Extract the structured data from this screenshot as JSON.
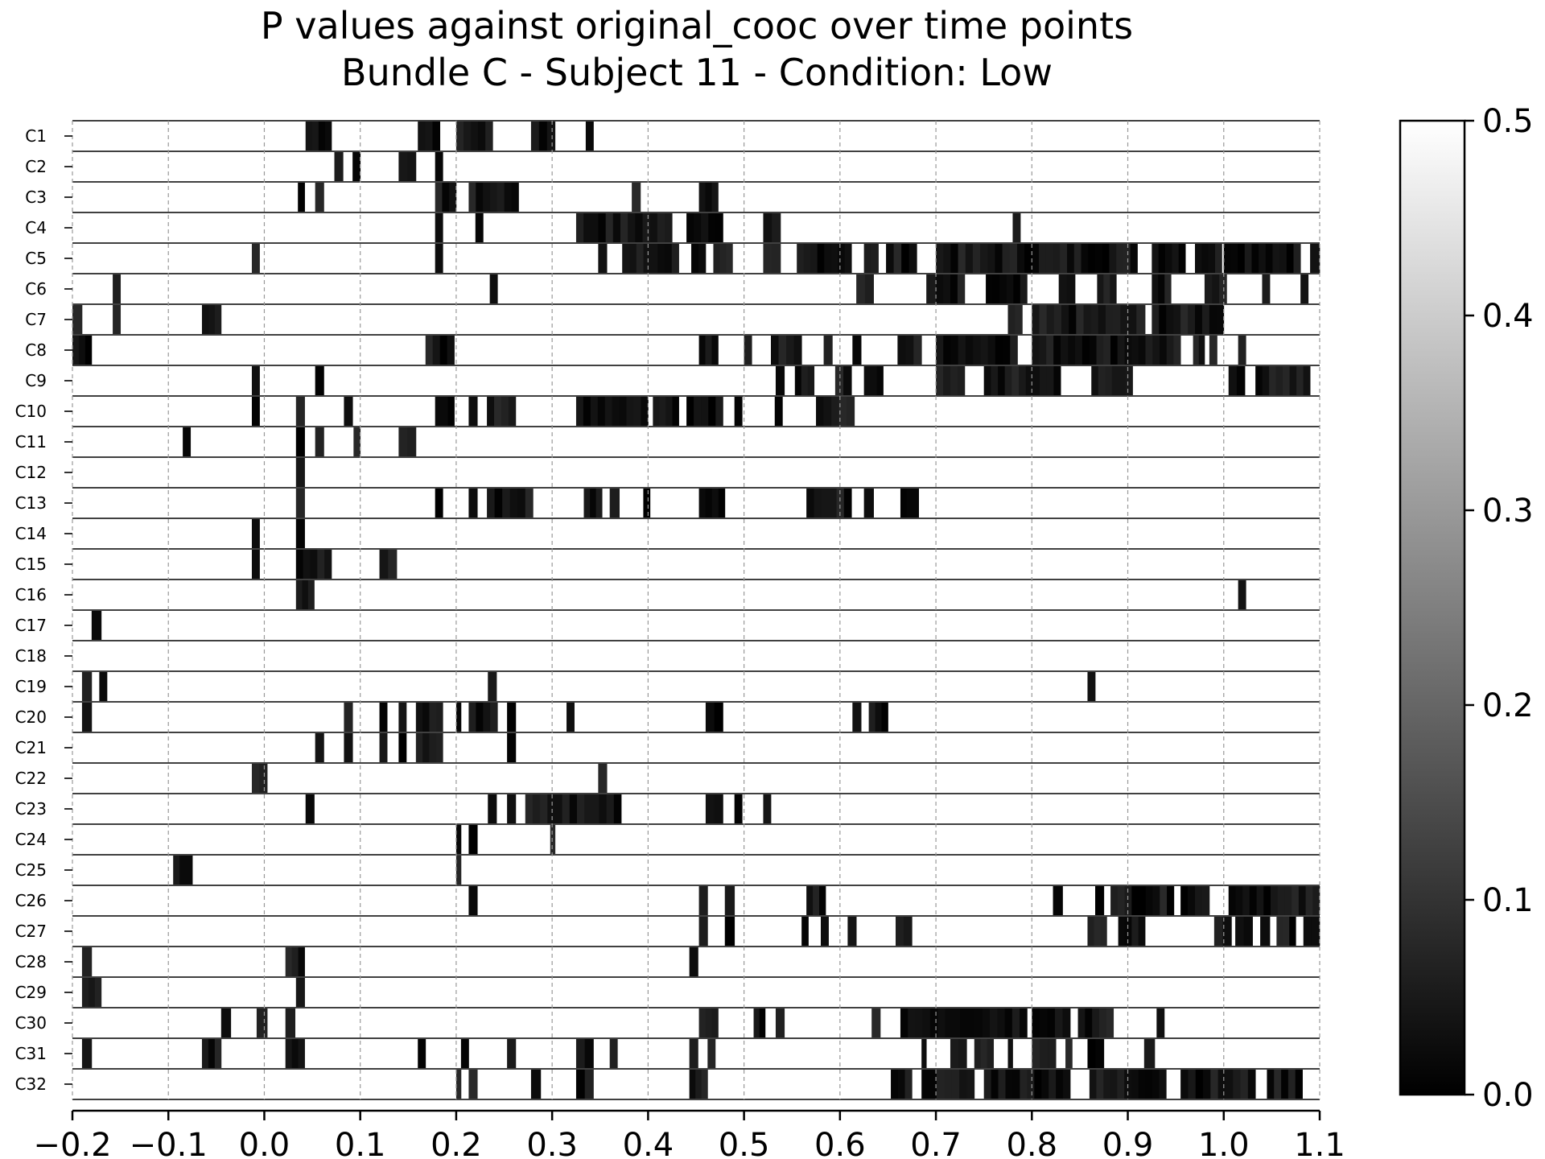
{
  "chart_data": {
    "type": "heatmap",
    "title": "P values against original_cooc over time points",
    "subtitle": "Bundle C - Subject 11 - Condition: Low",
    "xlim": [
      -0.2,
      1.1
    ],
    "xticks": [
      "−0.2",
      "−0.1",
      "0.0",
      "0.1",
      "0.2",
      "0.3",
      "0.4",
      "0.5",
      "0.6",
      "0.7",
      "0.8",
      "0.9",
      "1.0",
      "1.1"
    ],
    "xtick_values": [
      -0.2,
      -0.1,
      0.0,
      0.1,
      0.2,
      0.3,
      0.4,
      0.5,
      0.6,
      0.7,
      0.8,
      0.9,
      1.0,
      1.1
    ],
    "grid": "vertical dashed at x ticks",
    "colormap": "gray",
    "colorbar": {
      "vmin": 0.0,
      "vmax": 0.5,
      "ticks": [
        "0.0",
        "0.1",
        "0.2",
        "0.3",
        "0.4",
        "0.5"
      ],
      "placement": "right"
    },
    "note_value": "significant time points shown dark (p near 0), others white (p >= 0.5)",
    "rows": [
      {
        "label": "C1",
        "intervals": [
          [
            0.043,
            0.07
          ],
          [
            0.16,
            0.183
          ],
          [
            0.2,
            0.238
          ],
          [
            0.278,
            0.303
          ],
          [
            0.335,
            0.343
          ]
        ]
      },
      {
        "label": "C2",
        "intervals": [
          [
            0.073,
            0.082
          ],
          [
            0.092,
            0.1
          ],
          [
            0.14,
            0.158
          ],
          [
            0.178,
            0.186
          ]
        ]
      },
      {
        "label": "C3",
        "intervals": [
          [
            0.035,
            0.042
          ],
          [
            0.053,
            0.062
          ],
          [
            0.178,
            0.2
          ],
          [
            0.213,
            0.265
          ],
          [
            0.383,
            0.392
          ],
          [
            0.453,
            0.473
          ]
        ]
      },
      {
        "label": "C4",
        "intervals": [
          [
            0.178,
            0.186
          ],
          [
            0.22,
            0.228
          ],
          [
            0.325,
            0.425
          ],
          [
            0.44,
            0.478
          ],
          [
            0.52,
            0.538
          ],
          [
            0.78,
            0.788
          ]
        ]
      },
      {
        "label": "C5",
        "intervals": [
          [
            -0.013,
            -0.005
          ],
          [
            0.178,
            0.186
          ],
          [
            0.348,
            0.357
          ],
          [
            0.373,
            0.432
          ],
          [
            0.445,
            0.46
          ],
          [
            0.468,
            0.488
          ],
          [
            0.52,
            0.538
          ],
          [
            0.555,
            0.612
          ],
          [
            0.625,
            0.64
          ],
          [
            0.648,
            0.68
          ],
          [
            0.7,
            0.8
          ],
          [
            0.8,
            0.91
          ],
          [
            0.925,
            0.96
          ],
          [
            0.97,
            0.998
          ],
          [
            1.0,
            1.08
          ],
          [
            1.09,
            1.1
          ]
        ]
      },
      {
        "label": "C6",
        "intervals": [
          [
            -0.158,
            -0.15
          ],
          [
            0.235,
            0.243
          ],
          [
            0.617,
            0.635
          ],
          [
            0.69,
            0.7
          ],
          [
            0.7,
            0.73
          ],
          [
            0.752,
            0.795
          ],
          [
            0.828,
            0.845
          ],
          [
            0.868,
            0.888
          ],
          [
            0.925,
            0.945
          ],
          [
            0.98,
            1.003
          ],
          [
            1.04,
            1.048
          ],
          [
            1.08,
            1.088
          ]
        ]
      },
      {
        "label": "C7",
        "intervals": [
          [
            -0.2,
            -0.19
          ],
          [
            -0.158,
            -0.15
          ],
          [
            -0.065,
            -0.045
          ],
          [
            0.775,
            0.79
          ],
          [
            0.8,
            0.9
          ],
          [
            0.9,
            0.918
          ],
          [
            0.925,
            1.0
          ]
        ]
      },
      {
        "label": "C8",
        "intervals": [
          [
            -0.2,
            -0.18
          ],
          [
            0.168,
            0.198
          ],
          [
            0.453,
            0.473
          ],
          [
            0.5,
            0.508
          ],
          [
            0.528,
            0.56
          ],
          [
            0.583,
            0.592
          ],
          [
            0.613,
            0.622
          ],
          [
            0.66,
            0.685
          ],
          [
            0.7,
            0.785
          ],
          [
            0.8,
            0.86
          ],
          [
            0.86,
            0.955
          ],
          [
            0.968,
            0.98
          ],
          [
            0.985,
            0.993
          ],
          [
            1.015,
            1.023
          ]
        ]
      },
      {
        "label": "C9",
        "intervals": [
          [
            -0.013,
            -0.005
          ],
          [
            0.053,
            0.062
          ],
          [
            0.533,
            0.542
          ],
          [
            0.553,
            0.573
          ],
          [
            0.595,
            0.612
          ],
          [
            0.625,
            0.645
          ],
          [
            0.7,
            0.73
          ],
          [
            0.75,
            0.83
          ],
          [
            0.862,
            0.905
          ],
          [
            1.005,
            1.022
          ],
          [
            1.033,
            1.09
          ]
        ]
      },
      {
        "label": "C10",
        "intervals": [
          [
            -0.013,
            -0.005
          ],
          [
            0.033,
            0.042
          ],
          [
            0.083,
            0.092
          ],
          [
            0.178,
            0.198
          ],
          [
            0.213,
            0.222
          ],
          [
            0.232,
            0.262
          ],
          [
            0.325,
            0.4
          ],
          [
            0.405,
            0.432
          ],
          [
            0.44,
            0.478
          ],
          [
            0.49,
            0.498
          ],
          [
            0.532,
            0.54
          ],
          [
            0.575,
            0.615
          ]
        ]
      },
      {
        "label": "C11",
        "intervals": [
          [
            -0.085,
            -0.077
          ],
          [
            0.033,
            0.042
          ],
          [
            0.053,
            0.062
          ],
          [
            0.093,
            0.1
          ],
          [
            0.14,
            0.158
          ]
        ]
      },
      {
        "label": "C12",
        "intervals": [
          [
            0.033,
            0.042
          ]
        ]
      },
      {
        "label": "C13",
        "intervals": [
          [
            0.033,
            0.042
          ],
          [
            0.178,
            0.186
          ],
          [
            0.213,
            0.222
          ],
          [
            0.232,
            0.28
          ],
          [
            0.333,
            0.352
          ],
          [
            0.36,
            0.37
          ],
          [
            0.395,
            0.402
          ],
          [
            0.453,
            0.48
          ],
          [
            0.565,
            0.612
          ],
          [
            0.625,
            0.635
          ],
          [
            0.663,
            0.682
          ]
        ]
      },
      {
        "label": "C14",
        "intervals": [
          [
            -0.013,
            -0.005
          ],
          [
            0.033,
            0.042
          ]
        ]
      },
      {
        "label": "C15",
        "intervals": [
          [
            -0.013,
            -0.005
          ],
          [
            0.033,
            0.07
          ],
          [
            0.12,
            0.138
          ]
        ]
      },
      {
        "label": "C16",
        "intervals": [
          [
            0.033,
            0.052
          ],
          [
            1.015,
            1.023
          ]
        ]
      },
      {
        "label": "C17",
        "intervals": [
          [
            -0.18,
            -0.17
          ]
        ]
      },
      {
        "label": "C18",
        "intervals": []
      },
      {
        "label": "C19",
        "intervals": [
          [
            -0.19,
            -0.18
          ],
          [
            -0.172,
            -0.164
          ],
          [
            0.233,
            0.242
          ],
          [
            0.858,
            0.866
          ]
        ]
      },
      {
        "label": "C20",
        "intervals": [
          [
            -0.19,
            -0.18
          ],
          [
            0.083,
            0.092
          ],
          [
            0.12,
            0.128
          ],
          [
            0.14,
            0.148
          ],
          [
            0.158,
            0.186
          ],
          [
            0.2,
            0.205
          ],
          [
            0.213,
            0.243
          ],
          [
            0.253,
            0.262
          ],
          [
            0.315,
            0.323
          ],
          [
            0.46,
            0.478
          ],
          [
            0.613,
            0.622
          ],
          [
            0.63,
            0.65
          ]
        ]
      },
      {
        "label": "C21",
        "intervals": [
          [
            0.053,
            0.062
          ],
          [
            0.083,
            0.092
          ],
          [
            0.12,
            0.128
          ],
          [
            0.14,
            0.148
          ],
          [
            0.158,
            0.186
          ],
          [
            0.253,
            0.262
          ]
        ]
      },
      {
        "label": "C22",
        "intervals": [
          [
            -0.013,
            0.003
          ],
          [
            0.348,
            0.357
          ]
        ]
      },
      {
        "label": "C23",
        "intervals": [
          [
            0.043,
            0.052
          ],
          [
            0.233,
            0.242
          ],
          [
            0.253,
            0.262
          ],
          [
            0.272,
            0.372
          ],
          [
            0.46,
            0.478
          ],
          [
            0.49,
            0.498
          ],
          [
            0.52,
            0.528
          ]
        ]
      },
      {
        "label": "C24",
        "intervals": [
          [
            0.2,
            0.205
          ],
          [
            0.213,
            0.222
          ],
          [
            0.298,
            0.303
          ]
        ]
      },
      {
        "label": "C25",
        "intervals": [
          [
            -0.095,
            -0.075
          ],
          [
            0.2,
            0.205
          ]
        ]
      },
      {
        "label": "C26",
        "intervals": [
          [
            0.213,
            0.222
          ],
          [
            0.453,
            0.462
          ],
          [
            0.48,
            0.49
          ],
          [
            0.565,
            0.585
          ],
          [
            0.822,
            0.832
          ],
          [
            0.866,
            0.875
          ],
          [
            0.882,
            0.948
          ],
          [
            0.955,
            0.985
          ],
          [
            1.005,
            1.1
          ]
        ]
      },
      {
        "label": "C27",
        "intervals": [
          [
            0.453,
            0.462
          ],
          [
            0.48,
            0.49
          ],
          [
            0.56,
            0.567
          ],
          [
            0.58,
            0.588
          ],
          [
            0.608,
            0.617
          ],
          [
            0.658,
            0.675
          ],
          [
            0.858,
            0.878
          ],
          [
            0.89,
            0.918
          ],
          [
            0.99,
            1.008
          ],
          [
            1.012,
            1.03
          ],
          [
            1.038,
            1.048
          ],
          [
            1.055,
            1.075
          ],
          [
            1.083,
            1.1
          ]
        ]
      },
      {
        "label": "C28",
        "intervals": [
          [
            -0.19,
            -0.18
          ],
          [
            0.022,
            0.042
          ],
          [
            0.443,
            0.452
          ]
        ]
      },
      {
        "label": "C29",
        "intervals": [
          [
            -0.19,
            -0.17
          ],
          [
            0.033,
            0.042
          ]
        ]
      },
      {
        "label": "C30",
        "intervals": [
          [
            -0.045,
            -0.035
          ],
          [
            -0.008,
            0.003
          ],
          [
            0.022,
            0.032
          ],
          [
            0.453,
            0.473
          ],
          [
            0.51,
            0.522
          ],
          [
            0.533,
            0.542
          ],
          [
            0.633,
            0.642
          ],
          [
            0.663,
            0.795
          ],
          [
            0.8,
            0.84
          ],
          [
            0.848,
            0.885
          ],
          [
            0.93,
            0.938
          ]
        ]
      },
      {
        "label": "C31",
        "intervals": [
          [
            -0.19,
            -0.18
          ],
          [
            -0.065,
            -0.045
          ],
          [
            0.022,
            0.042
          ],
          [
            0.16,
            0.168
          ],
          [
            0.205,
            0.213
          ],
          [
            0.253,
            0.262
          ],
          [
            0.325,
            0.343
          ],
          [
            0.36,
            0.368
          ],
          [
            0.443,
            0.452
          ],
          [
            0.462,
            0.47
          ],
          [
            0.685,
            0.69
          ],
          [
            0.715,
            0.732
          ],
          [
            0.74,
            0.76
          ],
          [
            0.775,
            0.78
          ],
          [
            0.8,
            0.825
          ],
          [
            0.835,
            0.842
          ],
          [
            0.858,
            0.875
          ],
          [
            0.917,
            0.928
          ]
        ]
      },
      {
        "label": "C32",
        "intervals": [
          [
            0.2,
            0.205
          ],
          [
            0.213,
            0.222
          ],
          [
            0.278,
            0.288
          ],
          [
            0.325,
            0.343
          ],
          [
            0.443,
            0.462
          ],
          [
            0.653,
            0.675
          ],
          [
            0.685,
            0.74
          ],
          [
            0.75,
            0.84
          ],
          [
            0.86,
            0.94
          ],
          [
            0.955,
            1.033
          ],
          [
            1.045,
            1.082
          ]
        ]
      }
    ]
  }
}
